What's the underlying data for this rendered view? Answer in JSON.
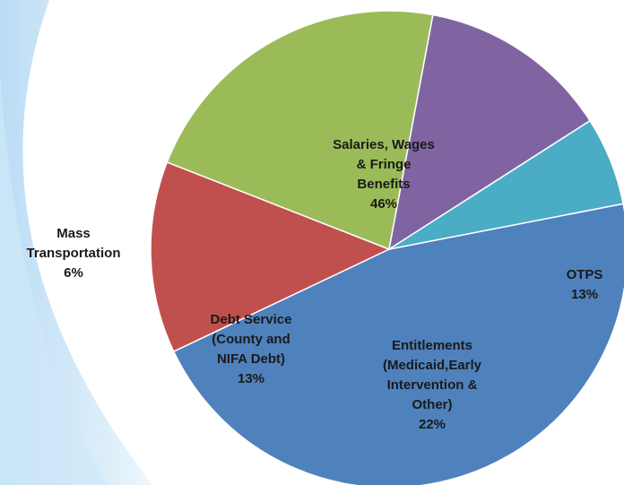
{
  "chart_data": {
    "type": "pie",
    "categories": [
      "Salaries, Wages\n& Fringe\nBenefits",
      "OTPS",
      "Entitlements\n(Medicaid,Early\nIntervention &\nOther)",
      "Debt Service\n(County and\nNIFA Debt)",
      "Mass\nTransportation"
    ],
    "values": [
      46,
      13,
      22,
      13,
      6
    ],
    "value_labels": [
      "46%",
      "13%",
      "22%",
      "13%",
      "6%"
    ],
    "colors": [
      "#4f81bd",
      "#c0504d",
      "#9bbb59",
      "#8064a2",
      "#4bacc6"
    ]
  }
}
